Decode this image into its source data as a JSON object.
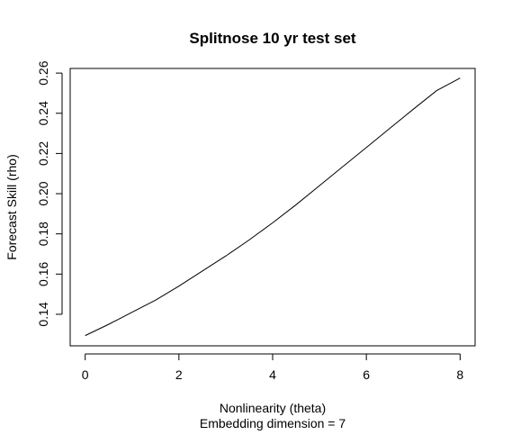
{
  "chart_data": {
    "type": "line",
    "title": "Splitnose 10 yr test set",
    "xlabel": "Nonlinearity (theta)",
    "xlabel_line2": "Embedding dimension = 7",
    "ylabel": "Forecast Skill (rho)",
    "xlim": [
      -0.32,
      8.32
    ],
    "ylim": [
      0.1243,
      0.2623
    ],
    "x_ticks": [
      0,
      2,
      4,
      6,
      8
    ],
    "y_ticks": [
      0.14,
      0.16,
      0.18,
      0.2,
      0.22,
      0.24,
      0.26
    ],
    "x_tick_labels": [
      "0",
      "2",
      "4",
      "6",
      "8"
    ],
    "y_tick_labels": [
      "0.14",
      "0.16",
      "0.18",
      "0.20",
      "0.22",
      "0.24",
      "0.26"
    ],
    "grid": false,
    "x": [
      0,
      0.5,
      1,
      1.5,
      2,
      2.5,
      3,
      3.5,
      4,
      4.5,
      5,
      5.5,
      6,
      6.5,
      7,
      7.5,
      8
    ],
    "y": [
      0.1294,
      0.135,
      0.141,
      0.147,
      0.154,
      0.1615,
      0.169,
      0.177,
      0.1855,
      0.1945,
      0.204,
      0.2135,
      0.223,
      0.2325,
      0.242,
      0.2513,
      0.2575
    ]
  }
}
